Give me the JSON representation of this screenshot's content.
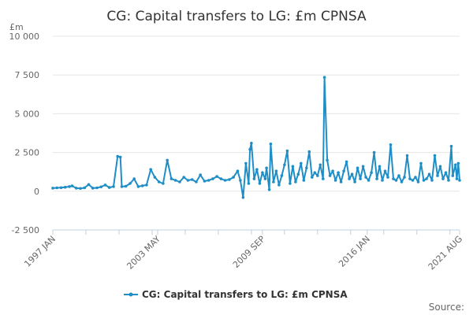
{
  "chart_data": {
    "type": "line",
    "title": "CG: Capital transfers to LG: £m CPNSA",
    "ylabel": "£m",
    "xlabel": "",
    "ylim": [
      -2500,
      10000
    ],
    "y_ticks": [
      -2500,
      0,
      2500,
      5000,
      7500,
      10000
    ],
    "y_tick_labels": [
      "-2 500",
      "0",
      "2 500",
      "5 000",
      "7 500",
      "10 000"
    ],
    "x_ticks": [
      {
        "label": "1997 JAN",
        "date": "1997-01"
      },
      {
        "label": "2003 MAY",
        "date": "2003-05"
      },
      {
        "label": "2009 SEP",
        "date": "2009-09"
      },
      {
        "label": "2016 JAN",
        "date": "2016-01"
      },
      {
        "label": "2021 AUG",
        "date": "2021-08"
      }
    ],
    "x_range": [
      "1997-01",
      "2021-08"
    ],
    "grid": "horizontal",
    "legend_position": "bottom",
    "series": [
      {
        "name": "CG: Capital transfers to LG: £m CPNSA",
        "color": "#1f8ec7",
        "points": [
          [
            "1997-01",
            200
          ],
          [
            "1997-04",
            220
          ],
          [
            "1997-07",
            230
          ],
          [
            "1997-10",
            260
          ],
          [
            "1998-01",
            300
          ],
          [
            "1998-03",
            340
          ],
          [
            "1998-06",
            200
          ],
          [
            "1998-09",
            180
          ],
          [
            "1998-12",
            220
          ],
          [
            "1999-03",
            430
          ],
          [
            "1999-06",
            200
          ],
          [
            "1999-09",
            220
          ],
          [
            "1999-12",
            280
          ],
          [
            "2000-03",
            400
          ],
          [
            "2000-06",
            240
          ],
          [
            "2000-09",
            300
          ],
          [
            "2000-12",
            2250
          ],
          [
            "2001-02",
            2200
          ],
          [
            "2001-03",
            300
          ],
          [
            "2001-06",
            320
          ],
          [
            "2001-09",
            500
          ],
          [
            "2001-12",
            800
          ],
          [
            "2002-03",
            300
          ],
          [
            "2002-06",
            350
          ],
          [
            "2002-09",
            400
          ],
          [
            "2002-12",
            1400
          ],
          [
            "2003-03",
            900
          ],
          [
            "2003-06",
            600
          ],
          [
            "2003-09",
            500
          ],
          [
            "2003-12",
            2000
          ],
          [
            "2004-03",
            800
          ],
          [
            "2004-06",
            700
          ],
          [
            "2004-09",
            600
          ],
          [
            "2004-12",
            900
          ],
          [
            "2005-03",
            700
          ],
          [
            "2005-06",
            750
          ],
          [
            "2005-09",
            600
          ],
          [
            "2005-12",
            1050
          ],
          [
            "2006-03",
            650
          ],
          [
            "2006-06",
            700
          ],
          [
            "2006-09",
            800
          ],
          [
            "2006-12",
            950
          ],
          [
            "2007-03",
            800
          ],
          [
            "2007-06",
            700
          ],
          [
            "2007-09",
            750
          ],
          [
            "2007-12",
            900
          ],
          [
            "2008-03",
            1300
          ],
          [
            "2008-05",
            700
          ],
          [
            "2008-07",
            -400
          ],
          [
            "2008-09",
            1800
          ],
          [
            "2008-11",
            500
          ],
          [
            "2008-12",
            2700
          ],
          [
            "2009-01",
            3100
          ],
          [
            "2009-03",
            800
          ],
          [
            "2009-05",
            1400
          ],
          [
            "2009-07",
            500
          ],
          [
            "2009-09",
            1200
          ],
          [
            "2009-11",
            800
          ],
          [
            "2009-12",
            1500
          ],
          [
            "2010-02",
            100
          ],
          [
            "2010-03",
            3050
          ],
          [
            "2010-05",
            600
          ],
          [
            "2010-07",
            1300
          ],
          [
            "2010-09",
            400
          ],
          [
            "2010-11",
            1000
          ],
          [
            "2011-01",
            1700
          ],
          [
            "2011-03",
            2600
          ],
          [
            "2011-05",
            500
          ],
          [
            "2011-07",
            1600
          ],
          [
            "2011-09",
            600
          ],
          [
            "2011-11",
            1100
          ],
          [
            "2012-01",
            1800
          ],
          [
            "2012-03",
            700
          ],
          [
            "2012-05",
            1500
          ],
          [
            "2012-07",
            2550
          ],
          [
            "2012-09",
            900
          ],
          [
            "2012-11",
            1200
          ],
          [
            "2013-01",
            1000
          ],
          [
            "2013-03",
            1700
          ],
          [
            "2013-05",
            800
          ],
          [
            "2013-06",
            7350
          ],
          [
            "2013-08",
            2000
          ],
          [
            "2013-10",
            1000
          ],
          [
            "2013-12",
            1300
          ],
          [
            "2014-02",
            700
          ],
          [
            "2014-04",
            1200
          ],
          [
            "2014-06",
            600
          ],
          [
            "2014-08",
            1300
          ],
          [
            "2014-10",
            1900
          ],
          [
            "2014-12",
            800
          ],
          [
            "2015-02",
            1100
          ],
          [
            "2015-04",
            600
          ],
          [
            "2015-06",
            1500
          ],
          [
            "2015-08",
            800
          ],
          [
            "2015-10",
            1600
          ],
          [
            "2015-12",
            900
          ],
          [
            "2016-02",
            700
          ],
          [
            "2016-04",
            1200
          ],
          [
            "2016-06",
            2500
          ],
          [
            "2016-08",
            800
          ],
          [
            "2016-10",
            1600
          ],
          [
            "2016-12",
            700
          ],
          [
            "2017-02",
            1300
          ],
          [
            "2017-04",
            900
          ],
          [
            "2017-06",
            3000
          ],
          [
            "2017-08",
            800
          ],
          [
            "2017-10",
            700
          ],
          [
            "2017-12",
            1000
          ],
          [
            "2018-02",
            600
          ],
          [
            "2018-04",
            900
          ],
          [
            "2018-06",
            2300
          ],
          [
            "2018-08",
            800
          ],
          [
            "2018-10",
            700
          ],
          [
            "2018-12",
            900
          ],
          [
            "2019-02",
            600
          ],
          [
            "2019-04",
            1800
          ],
          [
            "2019-06",
            700
          ],
          [
            "2019-08",
            800
          ],
          [
            "2019-10",
            1100
          ],
          [
            "2019-12",
            700
          ],
          [
            "2020-02",
            2300
          ],
          [
            "2020-04",
            1000
          ],
          [
            "2020-06",
            1600
          ],
          [
            "2020-08",
            800
          ],
          [
            "2020-10",
            1200
          ],
          [
            "2020-12",
            700
          ],
          [
            "2021-02",
            2900
          ],
          [
            "2021-03",
            1000
          ],
          [
            "2021-05",
            1700
          ],
          [
            "2021-06",
            800
          ],
          [
            "2021-07",
            1800
          ],
          [
            "2021-08",
            700
          ]
        ]
      }
    ],
    "source_label": "Source:"
  }
}
